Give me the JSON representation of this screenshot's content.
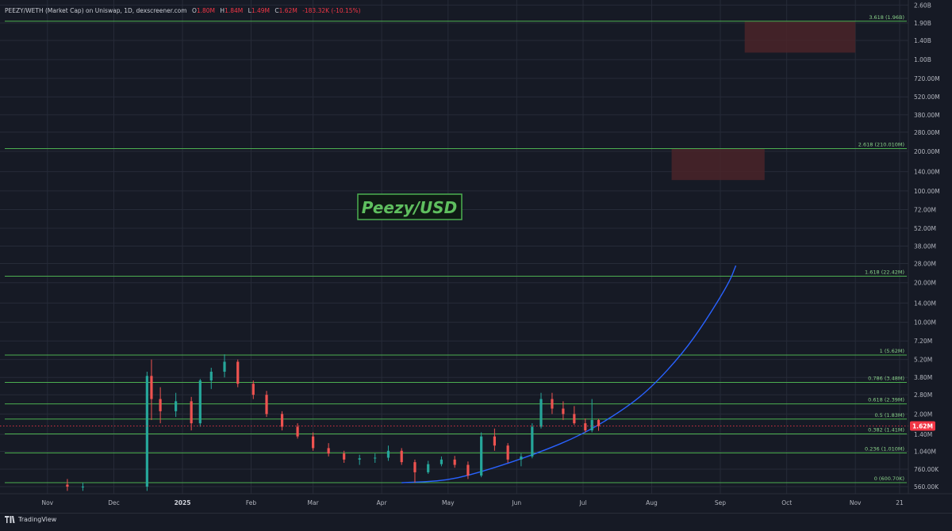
{
  "header": {
    "pair": "PEEZY/WETH (Market Cap) on Uniswap, 1D, dexscreener.com",
    "o_label": "O",
    "o_value": "1.80M",
    "h_label": "H",
    "h_value": "1.84M",
    "l_label": "L",
    "l_value": "1.49M",
    "c_label": "C",
    "c_value": "1.62M",
    "change": "-183.32K (-10.15%)"
  },
  "footer": {
    "brand": "TradingView",
    "logo_icon": "tradingview-logo-icon"
  },
  "colors": {
    "background": "#161a25",
    "grid": "#262b38",
    "fib_line": "#4caf50",
    "fib_label": "#89d089",
    "up_candle": "#26a69a",
    "down_candle": "#ef5350",
    "curve": "#2962ff",
    "zone": "#4a2429",
    "price_tag": "#f23645",
    "axis_text": "#b2b5be"
  },
  "chart_data": {
    "type": "candlestick",
    "title": "Peezy/USD",
    "y_scale": "log",
    "y_ticks": [
      "2.60B",
      "1.90B",
      "1.40B",
      "1.00B",
      "720.00M",
      "520.00M",
      "380.00M",
      "280.00M",
      "200.00M",
      "140.00M",
      "100.00M",
      "72.00M",
      "52.00M",
      "38.00M",
      "28.00M",
      "20.00M",
      "14.00M",
      "10.00M",
      "7.20M",
      "5.20M",
      "3.80M",
      "2.80M",
      "2.00M",
      "1.40M",
      "1.040M",
      "760.00K",
      "560.00K"
    ],
    "x_ticks": [
      "Nov",
      "Dec",
      "2025",
      "Feb",
      "Mar",
      "Apr",
      "May",
      "Jun",
      "Jul",
      "Aug",
      "Sep",
      "Oct",
      "Nov",
      "21"
    ],
    "last_price_label": "1.62M",
    "last_price": 1620000,
    "fib_levels": [
      {
        "label": "3.618 (1.96B)",
        "value": 1960000000
      },
      {
        "label": "2.618 (210.010M)",
        "value": 210010000
      },
      {
        "label": "1.618 (22.42M)",
        "value": 22420000
      },
      {
        "label": "1 (5.62M)",
        "value": 5620000
      },
      {
        "label": "0.786 (3.48M)",
        "value": 3480000
      },
      {
        "label": "0.618 (2.39M)",
        "value": 2390000
      },
      {
        "label": "0.5 (1.83M)",
        "value": 1830000
      },
      {
        "label": "0.382 (1.41M)",
        "value": 1410000
      },
      {
        "label": "0.236 (1.010M)",
        "value": 1010000
      },
      {
        "label": "0 (600.70K)",
        "value": 600700
      }
    ],
    "target_zones": [
      {
        "start": "2025-09-12",
        "end": "2025-11-01",
        "high": 1950000000,
        "low": 1130000000
      },
      {
        "start": "2025-08-10",
        "end": "2025-09-21",
        "high": 210000000,
        "low": 121000000
      }
    ],
    "curve_points": [
      [
        "2025-04-10",
        600000
      ],
      [
        "2025-05-01",
        620000
      ],
      [
        "2025-05-20",
        760000
      ],
      [
        "2025-06-10",
        1000000
      ],
      [
        "2025-07-01",
        1400000
      ],
      [
        "2025-07-20",
        2200000
      ],
      [
        "2025-08-01",
        3200000
      ],
      [
        "2025-08-15",
        5800000
      ],
      [
        "2025-08-25",
        10000000
      ],
      [
        "2025-09-05",
        20000000
      ],
      [
        "2025-09-08",
        27000000
      ]
    ],
    "candles_weekly": [
      [
        "2024-11-10",
        580000,
        640000,
        520000,
        560000
      ],
      [
        "2024-11-17",
        560000,
        600000,
        520000,
        560000
      ],
      [
        "2024-12-16",
        560000,
        4200000,
        520000,
        3900000
      ],
      [
        "2024-12-18",
        3900000,
        5200000,
        1800000,
        2600000
      ],
      [
        "2024-12-22",
        2600000,
        3200000,
        1700000,
        2100000
      ],
      [
        "2024-12-29",
        2100000,
        2900000,
        1900000,
        2500000
      ],
      [
        "2025-01-05",
        2500000,
        2700000,
        1500000,
        1700000
      ],
      [
        "2025-01-09",
        1700000,
        3700000,
        1600000,
        3600000
      ],
      [
        "2025-01-14",
        3600000,
        4500000,
        3100000,
        4200000
      ],
      [
        "2025-01-20",
        4200000,
        5700000,
        3800000,
        5000000
      ],
      [
        "2025-01-26",
        5000000,
        5200000,
        3200000,
        3400000
      ],
      [
        "2025-02-02",
        3400000,
        3600000,
        2600000,
        2800000
      ],
      [
        "2025-02-08",
        2800000,
        3000000,
        1900000,
        2000000
      ],
      [
        "2025-02-15",
        2000000,
        2100000,
        1500000,
        1600000
      ],
      [
        "2025-02-22",
        1600000,
        1700000,
        1300000,
        1350000
      ],
      [
        "2025-03-01",
        1350000,
        1450000,
        1050000,
        1100000
      ],
      [
        "2025-03-08",
        1100000,
        1200000,
        950000,
        1000000
      ],
      [
        "2025-03-15",
        1000000,
        1050000,
        850000,
        900000
      ],
      [
        "2025-03-22",
        900000,
        980000,
        820000,
        920000
      ],
      [
        "2025-03-29",
        920000,
        1000000,
        850000,
        930000
      ],
      [
        "2025-04-04",
        930000,
        1150000,
        880000,
        1050000
      ],
      [
        "2025-04-10",
        1050000,
        1100000,
        820000,
        860000
      ],
      [
        "2025-04-16",
        860000,
        900000,
        600000,
        720000
      ],
      [
        "2025-04-22",
        720000,
        880000,
        700000,
        830000
      ],
      [
        "2025-04-28",
        830000,
        950000,
        800000,
        900000
      ],
      [
        "2025-05-04",
        900000,
        960000,
        780000,
        820000
      ],
      [
        "2025-05-10",
        820000,
        870000,
        640000,
        680000
      ],
      [
        "2025-05-16",
        680000,
        1450000,
        660000,
        1350000
      ],
      [
        "2025-05-22",
        1350000,
        1550000,
        1050000,
        1150000
      ],
      [
        "2025-05-28",
        1150000,
        1200000,
        850000,
        900000
      ],
      [
        "2025-06-03",
        900000,
        1000000,
        800000,
        950000
      ],
      [
        "2025-06-08",
        950000,
        1700000,
        920000,
        1600000
      ],
      [
        "2025-06-12",
        1600000,
        2900000,
        1550000,
        2600000
      ],
      [
        "2025-06-17",
        2600000,
        2900000,
        2000000,
        2200000
      ],
      [
        "2025-06-22",
        2200000,
        2500000,
        1800000,
        2000000
      ],
      [
        "2025-06-27",
        2000000,
        2300000,
        1650000,
        1700000
      ],
      [
        "2025-07-02",
        1700000,
        1850000,
        1450000,
        1500000
      ],
      [
        "2025-07-05",
        1500000,
        2600000,
        1450000,
        1800000
      ],
      [
        "2025-07-08",
        1800000,
        1840000,
        1490000,
        1620000
      ]
    ]
  }
}
